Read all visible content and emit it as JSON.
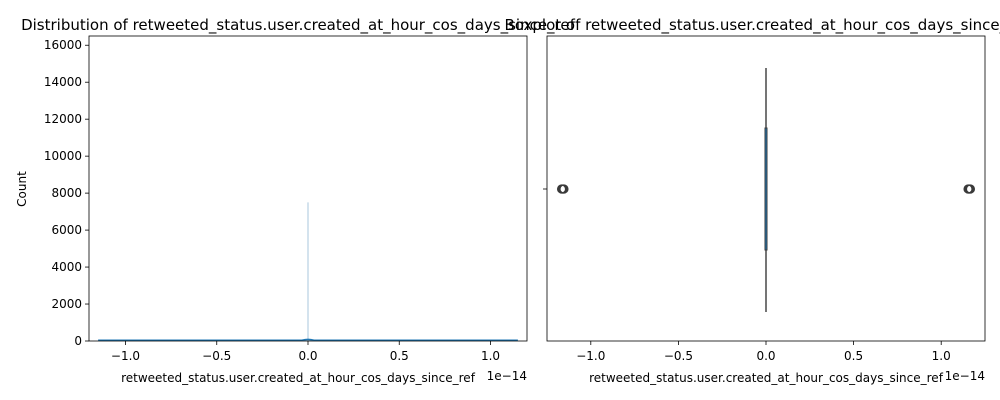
{
  "chart_data": [
    {
      "type": "histogram",
      "title": "Distribution of retweeted_status.user.created_at_hour_cos_days_since_ref",
      "xlabel": "retweeted_status.user.created_at_hour_cos_days_since_ref",
      "ylabel": "Count",
      "x_offset_label": "1e−14",
      "xlim": [
        -1.2,
        1.2
      ],
      "ylim": [
        0,
        16500
      ],
      "x_ticks": [
        -1.0,
        -0.5,
        0.0,
        0.5,
        1.0
      ],
      "x_tick_labels": [
        "−1.0",
        "−0.5",
        "0.0",
        "0.5",
        "1.0"
      ],
      "y_ticks": [
        0,
        2000,
        4000,
        6000,
        8000,
        10000,
        12000,
        14000,
        16000
      ],
      "y_tick_labels": [
        "0",
        "2000",
        "4000",
        "6000",
        "8000",
        "10000",
        "12000",
        "14000",
        "16000"
      ],
      "bars": [
        {
          "x": 0.0,
          "value": 7500
        }
      ],
      "kde_baseline": 40,
      "kde_peak": {
        "x": 0.0,
        "value": 130
      },
      "data_range": [
        -1.15,
        1.15
      ],
      "bar_color": "#a9c7de",
      "line_color": "#1f77b4"
    },
    {
      "type": "boxplot",
      "title": "Boxplot of retweeted_status.user.created_at_hour_cos_days_since_ref",
      "xlabel": "retweeted_status.user.created_at_hour_cos_days_since_ref",
      "x_offset_label": "1e−14",
      "xlim": [
        -1.25,
        1.25
      ],
      "x_ticks": [
        -1.0,
        -0.5,
        0.0,
        0.5,
        1.0
      ],
      "x_tick_labels": [
        "−1.0",
        "−0.5",
        "0.0",
        "0.5",
        "1.0"
      ],
      "median": 0.0,
      "q1": 0.0,
      "q3": 0.0,
      "whisker_low": 0.0,
      "whisker_high": 0.0,
      "outliers": [
        -1.16,
        1.16
      ],
      "color": "#1f77b4"
    }
  ]
}
